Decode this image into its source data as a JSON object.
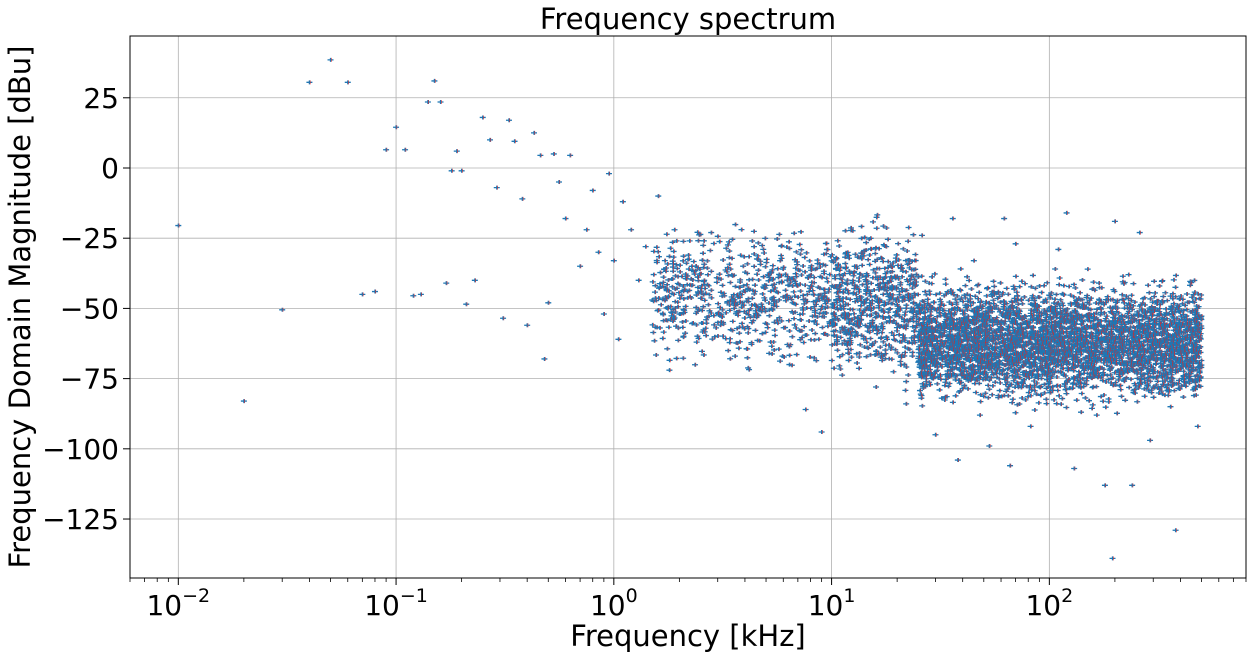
{
  "chart_data": {
    "type": "scatter",
    "title": "Frequency spectrum",
    "xlabel": "Frequency [kHz]",
    "ylabel": "Frequency Domain Magnitude [dBu]",
    "xscale": "log",
    "xlim": [
      0.006,
      800
    ],
    "ylim": [
      -146,
      47
    ],
    "grid": true,
    "x_ticks": [
      {
        "value": 0.01,
        "base": "10",
        "exp": "−2"
      },
      {
        "value": 0.1,
        "base": "10",
        "exp": "−1"
      },
      {
        "value": 1,
        "base": "10",
        "exp": "0"
      },
      {
        "value": 10,
        "base": "10",
        "exp": "1"
      },
      {
        "value": 100,
        "base": "10",
        "exp": "2"
      }
    ],
    "y_ticks": [
      {
        "value": 25,
        "label": "25"
      },
      {
        "value": 0,
        "label": "0"
      },
      {
        "value": -25,
        "label": "−25"
      },
      {
        "value": -50,
        "label": "−50"
      },
      {
        "value": -75,
        "label": "−75"
      },
      {
        "value": -100,
        "label": "−100"
      },
      {
        "value": -125,
        "label": "−125"
      }
    ],
    "colors": {
      "marker": "#1f77b4",
      "edge": "#d62728",
      "grid": "#b0b0b0"
    },
    "series": [
      {
        "points": [
          [
            0.01,
            -20.5
          ],
          [
            0.02,
            -83
          ],
          [
            0.03,
            -50.5
          ],
          [
            0.04,
            30.5
          ],
          [
            0.05,
            38.5
          ],
          [
            0.06,
            30.5
          ],
          [
            0.07,
            -45
          ],
          [
            0.08,
            -44
          ],
          [
            0.09,
            6.5
          ],
          [
            0.1,
            14.5
          ],
          [
            0.11,
            6.5
          ],
          [
            0.12,
            -45.5
          ],
          [
            0.13,
            -45
          ],
          [
            0.14,
            23.5
          ],
          [
            0.15,
            31
          ],
          [
            0.16,
            23.5
          ],
          [
            0.17,
            -41
          ],
          [
            0.18,
            -1
          ],
          [
            0.19,
            6
          ],
          [
            0.2,
            -1
          ],
          [
            0.21,
            -48.5
          ],
          [
            0.23,
            -40
          ],
          [
            0.25,
            18
          ],
          [
            0.27,
            10
          ],
          [
            0.29,
            -7
          ],
          [
            0.31,
            -53.5
          ],
          [
            0.33,
            17
          ],
          [
            0.35,
            9.5
          ],
          [
            0.38,
            -11
          ],
          [
            0.4,
            -56
          ],
          [
            0.43,
            12.5
          ],
          [
            0.46,
            4.5
          ],
          [
            0.48,
            -68
          ],
          [
            0.5,
            -48
          ],
          [
            0.53,
            5
          ],
          [
            0.56,
            -5
          ],
          [
            0.6,
            -18
          ],
          [
            0.63,
            4.5
          ],
          [
            0.7,
            -35
          ],
          [
            0.75,
            -22
          ],
          [
            0.8,
            -8
          ],
          [
            0.85,
            -30
          ],
          [
            0.9,
            -52
          ],
          [
            0.95,
            -2
          ],
          [
            1.0,
            -33
          ],
          [
            1.05,
            -61
          ],
          [
            1.1,
            -12
          ],
          [
            1.2,
            -22
          ],
          [
            1.3,
            -40
          ],
          [
            1.4,
            -28
          ],
          [
            1.5,
            -47
          ],
          [
            1.6,
            -10
          ],
          [
            1.7,
            -36
          ],
          [
            1.8,
            -72
          ],
          [
            1.9,
            -22
          ],
          [
            2.0,
            -52
          ],
          [
            2.2,
            -31
          ],
          [
            2.4,
            -62
          ],
          [
            2.6,
            -40
          ],
          [
            2.8,
            -23
          ],
          [
            3.0,
            -55
          ],
          [
            3.3,
            -37
          ],
          [
            3.6,
            -67
          ],
          [
            4.0,
            -44
          ],
          [
            4.4,
            -28
          ],
          [
            4.8,
            -59
          ],
          [
            5.3,
            -50
          ],
          [
            5.8,
            -33
          ],
          [
            6.4,
            -70
          ],
          [
            7.0,
            -46
          ],
          [
            7.6,
            -86
          ],
          [
            8.3,
            -39
          ],
          [
            9.0,
            -94
          ],
          [
            10,
            -55
          ],
          [
            11,
            -42
          ],
          [
            12,
            -66
          ],
          [
            13,
            -35
          ],
          [
            14,
            -60
          ],
          [
            15,
            -48
          ],
          [
            16,
            -78
          ],
          [
            18,
            -37
          ],
          [
            20,
            -52
          ],
          [
            22,
            -84
          ],
          [
            24,
            -58
          ],
          [
            26,
            -24
          ],
          [
            28,
            -41
          ],
          [
            30,
            -95
          ],
          [
            33,
            -62
          ],
          [
            36,
            -18
          ],
          [
            38,
            -104
          ],
          [
            40,
            -51
          ],
          [
            45,
            -33
          ],
          [
            48,
            -88
          ],
          [
            53,
            -99
          ],
          [
            58,
            -71
          ],
          [
            62,
            -18
          ],
          [
            66,
            -106
          ],
          [
            70,
            -27
          ],
          [
            75,
            -54
          ],
          [
            82,
            -92
          ],
          [
            90,
            -42
          ],
          [
            100,
            -76
          ],
          [
            110,
            -29
          ],
          [
            120,
            -16
          ],
          [
            130,
            -107
          ],
          [
            140,
            -64
          ],
          [
            150,
            -36
          ],
          [
            165,
            -88
          ],
          [
            180,
            -113
          ],
          [
            195,
            -139
          ],
          [
            200,
            -19
          ],
          [
            220,
            -48
          ],
          [
            240,
            -113
          ],
          [
            260,
            -23
          ],
          [
            290,
            -97
          ],
          [
            320,
            -42
          ],
          [
            360,
            -85
          ],
          [
            380,
            -129
          ],
          [
            420,
            -64
          ],
          [
            480,
            -92
          ]
        ],
        "bands": [
          {
            "x_start": 1.5,
            "x_end": 10,
            "y_center": -46,
            "y_spread": 10,
            "count": 700
          },
          {
            "x_start": 10,
            "x_end": 25,
            "y_center": -48,
            "y_spread": 12,
            "count": 650
          },
          {
            "x_start": 25,
            "x_end": 500,
            "y_center": -62,
            "y_spread": 9,
            "count": 4000
          }
        ]
      }
    ]
  }
}
